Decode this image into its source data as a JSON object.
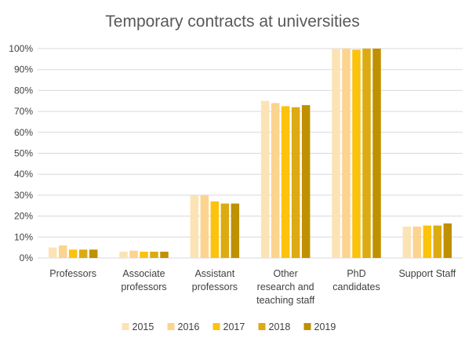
{
  "chart_data": {
    "type": "bar",
    "title": "Temporary contracts at universities",
    "xlabel": "",
    "ylabel": "",
    "ylim": [
      0,
      100
    ],
    "yticks": [
      "0%",
      "10%",
      "20%",
      "30%",
      "40%",
      "50%",
      "60%",
      "70%",
      "80%",
      "90%",
      "100%"
    ],
    "grid": true,
    "legend_position": "bottom",
    "categories": [
      [
        "Professors"
      ],
      [
        "Associate",
        "professors"
      ],
      [
        "Assistant",
        "professors"
      ],
      [
        "Other",
        "research and",
        "teaching staff"
      ],
      [
        "PhD",
        "candidates"
      ],
      [
        "Support Staff"
      ]
    ],
    "series": [
      {
        "name": "2015",
        "color": "#fbe3b5",
        "values": [
          5,
          3,
          30,
          75,
          100,
          15
        ]
      },
      {
        "name": "2016",
        "color": "#fcd38f",
        "values": [
          6,
          3.5,
          30,
          74,
          100,
          15
        ]
      },
      {
        "name": "2017",
        "color": "#fcc20c",
        "values": [
          4,
          3,
          27,
          72.5,
          99.5,
          15.5
        ]
      },
      {
        "name": "2018",
        "color": "#dcaa12",
        "values": [
          4,
          3,
          26,
          72,
          100,
          15.5
        ]
      },
      {
        "name": "2019",
        "color": "#bf9000",
        "values": [
          4,
          3,
          26,
          73,
          100,
          16.5
        ]
      }
    ]
  }
}
